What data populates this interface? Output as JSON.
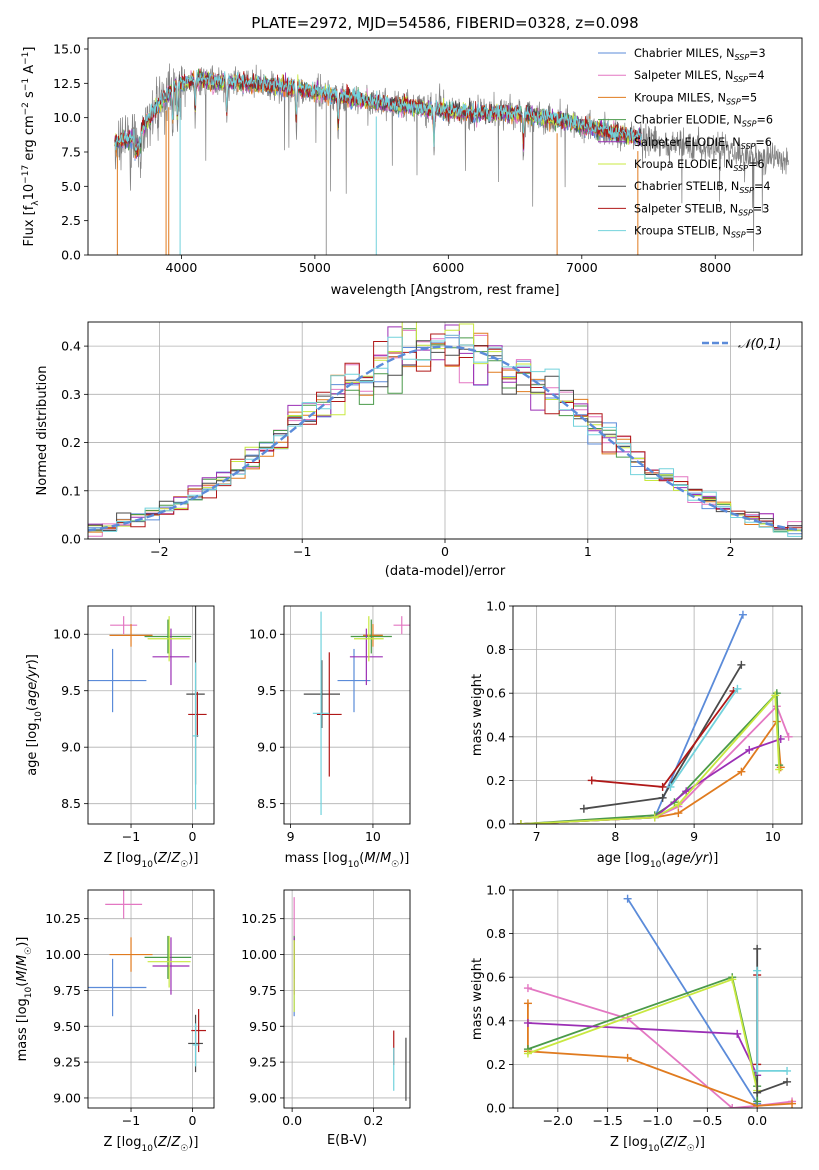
{
  "figure": {
    "title": "PLATE=2972, MJD=54586, FIBERID=0328, z=0.098"
  },
  "colors": {
    "Chabrier MILES": "#5b8bd9",
    "Salpeter MILES": "#e377c2",
    "Kroupa MILES": "#e07b1f",
    "Chabrier ELODIE": "#4a9a4a",
    "Salpeter ELODIE": "#9b2fb5",
    "Kroupa ELODIE": "#c8e840",
    "Chabrier STELIB": "#4a4a4a",
    "Salpeter STELIB": "#b01818",
    "Kroupa STELIB": "#72d2dc",
    "data": "#808080",
    "normal_curve": "#5b8bd9"
  },
  "chart_data": [
    {
      "type": "line",
      "id": "spectrum",
      "xlabel": "wavelength [Angstrom, rest frame]",
      "ylabel": "Flux [f_λ10^-17 erg cm^-2 s^-1 A^-1]",
      "xlim": [
        3300,
        8650
      ],
      "ylim": [
        0,
        15.8
      ],
      "xticks": [
        4000,
        5000,
        6000,
        7000,
        8000
      ],
      "yticks": [
        0.0,
        2.5,
        5.0,
        7.5,
        10.0,
        12.5,
        15.0
      ],
      "grid": false,
      "legend_position": "top-right",
      "legend": [
        {
          "label": "Chabrier MILES, N",
          "sub": "SSP",
          "suffix": "=3"
        },
        {
          "label": "Salpeter MILES, N",
          "sub": "SSP",
          "suffix": "=4"
        },
        {
          "label": "Kroupa MILES, N",
          "sub": "SSP",
          "suffix": "=5"
        },
        {
          "label": "Chabrier ELODIE, N",
          "sub": "SSP",
          "suffix": "=6"
        },
        {
          "label": "Salpeter ELODIE, N",
          "sub": "SSP",
          "suffix": "=6"
        },
        {
          "label": "Kroupa ELODIE, N",
          "sub": "SSP",
          "suffix": "=6"
        },
        {
          "label": "Chabrier STELIB, N",
          "sub": "SSP",
          "suffix": "=4"
        },
        {
          "label": "Salpeter STELIB, N",
          "sub": "SSP",
          "suffix": "=3"
        },
        {
          "label": "Kroupa STELIB, N",
          "sub": "SSP",
          "suffix": "=3"
        }
      ],
      "continuum_x": [
        3500,
        3650,
        3800,
        3950,
        4100,
        4300,
        4500,
        4700,
        5000,
        5300,
        5600,
        5900,
        6200,
        6500,
        6800,
        7100,
        7400,
        7700,
        8000,
        8300,
        8600
      ],
      "continuum_y": [
        8.2,
        8.5,
        10.5,
        12.3,
        12.8,
        12.6,
        12.5,
        12.3,
        11.9,
        11.3,
        10.9,
        10.6,
        10.3,
        10.3,
        9.9,
        9.2,
        8.6,
        8.1,
        7.7,
        7.2,
        7.0
      ],
      "absorption_lines": [
        3934,
        3969,
        4102,
        4340,
        4861,
        5175,
        5893,
        6563
      ],
      "model_x_range": [
        3500,
        7450
      ],
      "data_x_range": [
        3500,
        8550
      ],
      "dropouts": [
        {
          "series": "Kroupa MILES",
          "x": 3520
        },
        {
          "series": "Kroupa MILES",
          "x": 3885
        },
        {
          "series": "Kroupa MILES",
          "x": 3905
        },
        {
          "series": "Kroupa MILES",
          "x": 6815
        },
        {
          "series": "Kroupa MILES",
          "x": 7420
        },
        {
          "series": "Kroupa STELIB",
          "x": 5460
        },
        {
          "series": "Kroupa STELIB",
          "x": 3990
        },
        {
          "series": "data",
          "x": 5085
        }
      ]
    },
    {
      "type": "histogram",
      "id": "residuals",
      "xlabel": "(data-model)/error",
      "ylabel": "Normed distribution",
      "xlim": [
        -2.5,
        2.5
      ],
      "ylim": [
        0,
        0.45
      ],
      "xticks": [
        -2,
        -1,
        0,
        1,
        2
      ],
      "yticks": [
        0.0,
        0.1,
        0.2,
        0.3,
        0.4
      ],
      "grid": true,
      "bin_width": 0.1,
      "legend": "𝒩(0,1)",
      "legend_position": "top-right",
      "normal": {
        "mean": 0,
        "sigma": 1
      }
    },
    {
      "type": "scatter",
      "id": "age_vs_Z",
      "xlabel": "Z [log10(Z/Z☉)]",
      "ylabel": "age  [log10(age/yr)]",
      "xlim": [
        -1.7,
        0.35
      ],
      "ylim": [
        8.32,
        10.25
      ],
      "xticks": [
        -1,
        0
      ],
      "yticks": [
        8.5,
        9.0,
        9.5,
        10.0
      ],
      "grid": true,
      "points": [
        {
          "series": "Chabrier MILES",
          "x": -1.3,
          "y": 9.59,
          "xerr": 0.55,
          "yerr": 0.28
        },
        {
          "series": "Salpeter MILES",
          "x": -1.12,
          "y": 10.08,
          "xerr": 0.22,
          "yerr": 0.08
        },
        {
          "series": "Kroupa MILES",
          "x": -1.0,
          "y": 9.99,
          "xerr": 0.35,
          "yerr": 0.1
        },
        {
          "series": "Chabrier ELODIE",
          "x": -0.4,
          "y": 9.98,
          "xerr": 0.38,
          "yerr": 0.15
        },
        {
          "series": "Salpeter ELODIE",
          "x": -0.35,
          "y": 9.8,
          "xerr": 0.3,
          "yerr": 0.25
        },
        {
          "series": "Kroupa ELODIE",
          "x": -0.38,
          "y": 9.96,
          "xerr": 0.35,
          "yerr": 0.2
        },
        {
          "series": "Chabrier STELIB",
          "x": 0.05,
          "y": 9.47,
          "xerr": 0.15,
          "yerr": 0.8
        },
        {
          "series": "Salpeter STELIB",
          "x": 0.08,
          "y": 9.29,
          "xerr": 0.15,
          "yerr": 0.2
        },
        {
          "series": "Kroupa STELIB",
          "x": 0.05,
          "y": 9.1,
          "xerr": 0.05,
          "yerr": 0.65
        }
      ]
    },
    {
      "type": "scatter",
      "id": "age_vs_mass",
      "xlabel": "mass [log10(M/M☉)]",
      "ylabel": "",
      "xlim": [
        8.92,
        10.45
      ],
      "ylim": [
        8.32,
        10.25
      ],
      "xticks": [
        9,
        10
      ],
      "yticks": [
        8.5,
        9.0,
        9.5,
        10.0
      ],
      "grid": true,
      "points": [
        {
          "series": "Chabrier MILES",
          "x": 9.77,
          "y": 9.59,
          "xerr": 0.2,
          "yerr": 0.28
        },
        {
          "series": "Salpeter MILES",
          "x": 10.35,
          "y": 10.08,
          "xerr": 0.1,
          "yerr": 0.08
        },
        {
          "series": "Kroupa MILES",
          "x": 10.0,
          "y": 9.99,
          "xerr": 0.12,
          "yerr": 0.1
        },
        {
          "series": "Chabrier ELODIE",
          "x": 9.98,
          "y": 9.98,
          "xerr": 0.25,
          "yerr": 0.15
        },
        {
          "series": "Salpeter ELODIE",
          "x": 9.92,
          "y": 9.8,
          "xerr": 0.2,
          "yerr": 0.25
        },
        {
          "series": "Kroupa ELODIE",
          "x": 9.95,
          "y": 9.96,
          "xerr": 0.18,
          "yerr": 0.2
        },
        {
          "series": "Chabrier STELIB",
          "x": 9.38,
          "y": 9.47,
          "xerr": 0.22,
          "yerr": 0.3
        },
        {
          "series": "Salpeter STELIB",
          "x": 9.47,
          "y": 9.29,
          "xerr": 0.15,
          "yerr": 0.55
        },
        {
          "series": "Kroupa STELIB",
          "x": 9.37,
          "y": 9.3,
          "xerr": 0.1,
          "yerr": 0.9
        }
      ]
    },
    {
      "type": "line",
      "id": "massweight_vs_age",
      "xlabel": "age  [log10(age/yr)]",
      "ylabel": "mass weight",
      "xlim": [
        6.7,
        10.37
      ],
      "ylim": [
        0,
        1.0
      ],
      "xticks": [
        7,
        8,
        9,
        10
      ],
      "yticks": [
        0.0,
        0.2,
        0.4,
        0.6,
        0.8,
        1.0
      ],
      "grid": true,
      "series": [
        {
          "name": "Chabrier MILES",
          "points": [
            [
              6.8,
              0.0
            ],
            [
              8.5,
              0.03
            ],
            [
              9.62,
              0.96
            ]
          ]
        },
        {
          "name": "Salpeter MILES",
          "points": [
            [
              6.8,
              0.0
            ],
            [
              8.5,
              0.03
            ],
            [
              8.8,
              0.08
            ],
            [
              10.05,
              0.54
            ],
            [
              10.2,
              0.4
            ]
          ]
        },
        {
          "name": "Kroupa MILES",
          "points": [
            [
              6.8,
              0.0
            ],
            [
              8.5,
              0.03
            ],
            [
              8.8,
              0.05
            ],
            [
              9.6,
              0.24
            ],
            [
              10.05,
              0.47
            ],
            [
              10.1,
              0.26
            ]
          ]
        },
        {
          "name": "Chabrier ELODIE",
          "points": [
            [
              6.8,
              0.0
            ],
            [
              8.5,
              0.04
            ],
            [
              8.75,
              0.1
            ],
            [
              10.05,
              0.6
            ],
            [
              10.08,
              0.27
            ]
          ]
        },
        {
          "name": "Salpeter ELODIE",
          "points": [
            [
              6.8,
              0.0
            ],
            [
              8.5,
              0.03
            ],
            [
              8.9,
              0.15
            ],
            [
              9.7,
              0.34
            ],
            [
              10.1,
              0.39
            ]
          ]
        },
        {
          "name": "Kroupa ELODIE",
          "points": [
            [
              6.8,
              0.0
            ],
            [
              8.5,
              0.03
            ],
            [
              8.8,
              0.09
            ],
            [
              10.03,
              0.59
            ],
            [
              10.08,
              0.25
            ]
          ]
        },
        {
          "name": "Chabrier STELIB",
          "points": [
            [
              7.6,
              0.07
            ],
            [
              8.6,
              0.12
            ],
            [
              9.6,
              0.73
            ]
          ]
        },
        {
          "name": "Salpeter STELIB",
          "points": [
            [
              7.7,
              0.2
            ],
            [
              8.6,
              0.17
            ],
            [
              9.5,
              0.61
            ]
          ]
        },
        {
          "name": "Kroupa STELIB",
          "points": [
            [
              8.7,
              0.17
            ],
            [
              9.55,
              0.62
            ]
          ]
        }
      ]
    },
    {
      "type": "scatter",
      "id": "mass_vs_Z",
      "xlabel": "Z [log10(Z/Z☉)]",
      "ylabel": "mass [log10(M/M☉)]",
      "xlim": [
        -1.7,
        0.35
      ],
      "ylim": [
        8.93,
        10.45
      ],
      "xticks": [
        -1,
        0
      ],
      "yticks": [
        9.0,
        9.25,
        9.5,
        9.75,
        10.0,
        10.25
      ],
      "grid": true,
      "points": [
        {
          "series": "Chabrier MILES",
          "x": -1.3,
          "y": 9.77,
          "xerr": 0.55,
          "yerr": 0.2
        },
        {
          "series": "Salpeter MILES",
          "x": -1.12,
          "y": 10.35,
          "xerr": 0.3,
          "yerr": 0.1
        },
        {
          "series": "Kroupa MILES",
          "x": -1.0,
          "y": 10.0,
          "xerr": 0.35,
          "yerr": 0.12
        },
        {
          "series": "Chabrier ELODIE",
          "x": -0.4,
          "y": 9.98,
          "xerr": 0.38,
          "yerr": 0.15
        },
        {
          "series": "Salpeter ELODIE",
          "x": -0.35,
          "y": 9.92,
          "xerr": 0.3,
          "yerr": 0.2
        },
        {
          "series": "Kroupa ELODIE",
          "x": -0.38,
          "y": 9.95,
          "xerr": 0.35,
          "yerr": 0.18
        },
        {
          "series": "Chabrier STELIB",
          "x": 0.05,
          "y": 9.38,
          "xerr": 0.12,
          "yerr": 0.2
        },
        {
          "series": "Salpeter STELIB",
          "x": 0.1,
          "y": 9.47,
          "xerr": 0.12,
          "yerr": 0.15
        },
        {
          "series": "Kroupa STELIB",
          "x": 0.05,
          "y": 9.37,
          "xerr": 0.05,
          "yerr": 0.15
        }
      ]
    },
    {
      "type": "scatter",
      "id": "mass_vs_ebv",
      "xlabel": "E(B-V)",
      "ylabel": "",
      "xlim": [
        -0.02,
        0.29
      ],
      "ylim": [
        8.93,
        10.45
      ],
      "xticks": [
        0.0,
        0.2
      ],
      "yticks": [
        9.0,
        9.25,
        9.5,
        9.75,
        10.0,
        10.25
      ],
      "grid": true,
      "points": [
        {
          "series": "Chabrier MILES",
          "x": 0.005,
          "y": 9.77,
          "xerr": 0,
          "yerr": 0.2
        },
        {
          "series": "Salpeter MILES",
          "x": 0.005,
          "y": 10.2,
          "xerr": 0,
          "yerr": 0.2
        },
        {
          "series": "Kroupa MILES",
          "x": 0.005,
          "y": 10.0,
          "xerr": 0,
          "yerr": 0.12
        },
        {
          "series": "Chabrier ELODIE",
          "x": 0.005,
          "y": 9.98,
          "xerr": 0,
          "yerr": 0.15
        },
        {
          "series": "Salpeter ELODIE",
          "x": 0.005,
          "y": 9.92,
          "xerr": 0,
          "yerr": 0.2
        },
        {
          "series": "Kroupa ELODIE",
          "x": 0.005,
          "y": 9.85,
          "xerr": 0,
          "yerr": 0.25
        },
        {
          "series": "Chabrier STELIB",
          "x": 0.28,
          "y": 9.2,
          "xerr": 0,
          "yerr": 0.22
        },
        {
          "series": "Salpeter STELIB",
          "x": 0.25,
          "y": 9.35,
          "xerr": 0,
          "yerr": 0.12
        },
        {
          "series": "Kroupa STELIB",
          "x": 0.25,
          "y": 9.2,
          "xerr": 0,
          "yerr": 0.15
        }
      ]
    },
    {
      "type": "line",
      "id": "massweight_vs_Z",
      "xlabel": "Z [log10(Z/Z☉)]",
      "ylabel": "mass weight",
      "xlim": [
        -2.45,
        0.45
      ],
      "ylim": [
        0,
        1.0
      ],
      "xticks": [
        -2.0,
        -1.5,
        -1.0,
        -0.5,
        0.0
      ],
      "yticks": [
        0.0,
        0.2,
        0.4,
        0.6,
        0.8,
        1.0
      ],
      "grid": true,
      "series": [
        {
          "name": "Chabrier MILES",
          "points": [
            [
              -1.3,
              0.96
            ],
            [
              0.0,
              0.02
            ]
          ]
        },
        {
          "name": "Salpeter MILES",
          "points": [
            [
              -2.3,
              0.55
            ],
            [
              -1.3,
              0.41
            ],
            [
              -0.25,
              0.0
            ],
            [
              0.0,
              0.01
            ],
            [
              0.35,
              0.03
            ]
          ]
        },
        {
          "name": "Kroupa MILES",
          "points": [
            [
              -2.3,
              0.48
            ],
            [
              -2.3,
              0.26
            ],
            [
              -1.3,
              0.23
            ],
            [
              0.0,
              0.01
            ],
            [
              0.35,
              0.02
            ]
          ]
        },
        {
          "name": "Chabrier ELODIE",
          "points": [
            [
              -2.3,
              0.27
            ],
            [
              -0.25,
              0.6
            ],
            [
              0.0,
              0.1
            ],
            [
              0.0,
              0.03
            ]
          ]
        },
        {
          "name": "Salpeter ELODIE",
          "points": [
            [
              -2.3,
              0.39
            ],
            [
              -0.2,
              0.34
            ],
            [
              0.0,
              0.15
            ]
          ]
        },
        {
          "name": "Kroupa ELODIE",
          "points": [
            [
              -2.3,
              0.25
            ],
            [
              -0.25,
              0.59
            ],
            [
              0.0,
              0.08
            ]
          ]
        },
        {
          "name": "Chabrier STELIB",
          "points": [
            [
              0.0,
              0.73
            ],
            [
              0.0,
              0.07
            ],
            [
              0.3,
              0.12
            ]
          ]
        },
        {
          "name": "Salpeter STELIB",
          "points": [
            [
              0.0,
              0.61
            ],
            [
              0.0,
              0.2
            ]
          ]
        },
        {
          "name": "Kroupa STELIB",
          "points": [
            [
              0.0,
              0.63
            ],
            [
              0.0,
              0.17
            ],
            [
              0.3,
              0.17
            ]
          ]
        }
      ]
    }
  ]
}
